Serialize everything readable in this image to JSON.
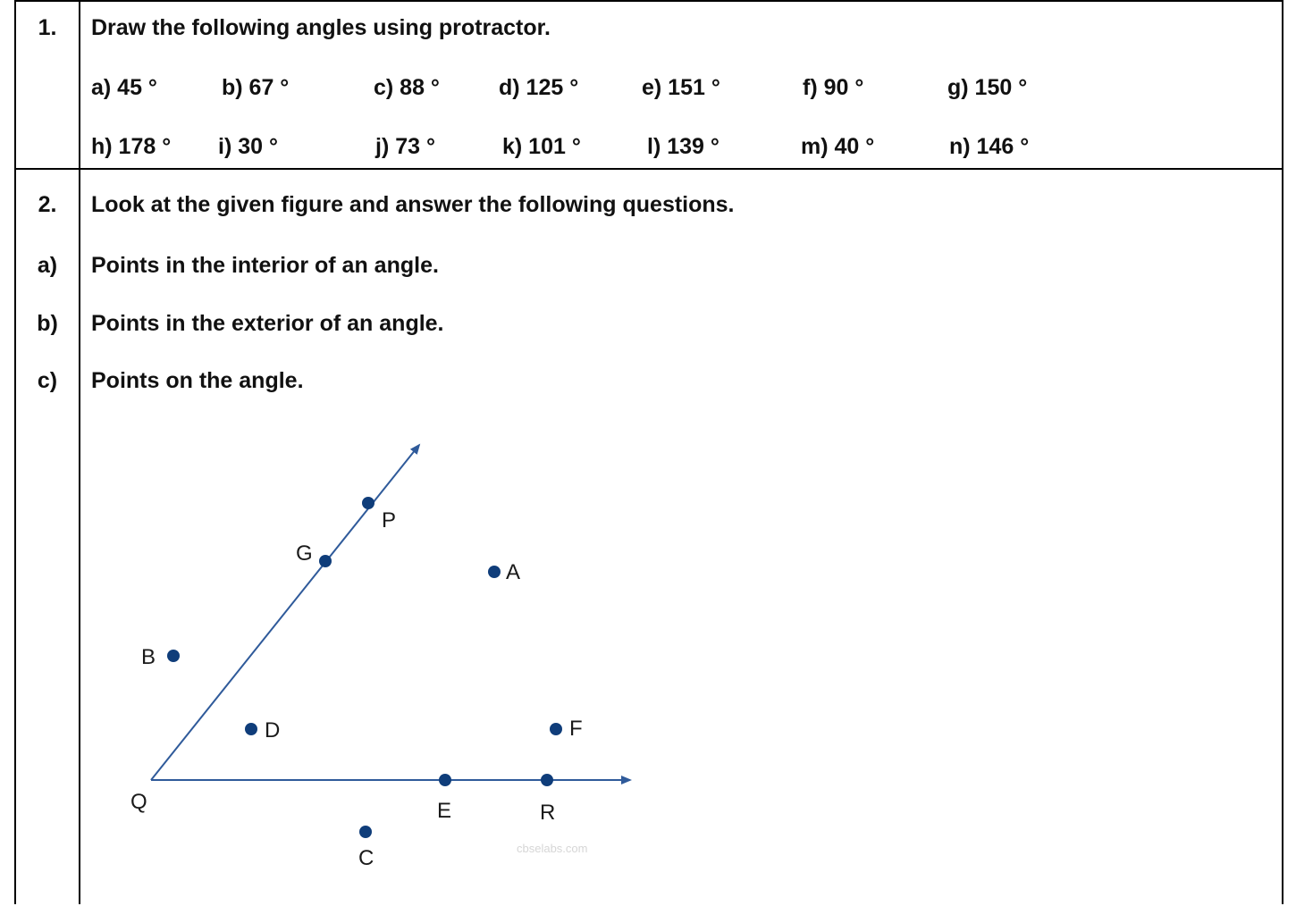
{
  "q1": {
    "number": "1.",
    "instruction": "Draw the following angles using protractor.",
    "row1": [
      "a) 45 °",
      "b) 67 °",
      "c) 88 °",
      "d) 125 °",
      "e) 151 °",
      "f) 90 °",
      "g) 150 °"
    ],
    "row2": [
      "h) 178 °",
      "i) 30 °",
      "j) 73 °",
      "k) 101 °",
      "l) 139 °",
      "m) 40 °",
      "n) 146 °"
    ]
  },
  "q2": {
    "number": "2.",
    "instruction": "Look at the given figure and answer the following questions.",
    "parts": [
      {
        "label": "a)",
        "text": "Points in the interior of an angle."
      },
      {
        "label": "b)",
        "text": "Points in the exterior of an angle."
      },
      {
        "label": "c)",
        "text": "Points on the angle."
      }
    ]
  },
  "figure": {
    "point_labels": [
      "P",
      "G",
      "A",
      "B",
      "D",
      "F",
      "Q",
      "E",
      "R",
      "C"
    ],
    "watermark": "cbselabs.com",
    "line_color": "#2f5a9a",
    "dot_color": "#0f3d7a"
  }
}
